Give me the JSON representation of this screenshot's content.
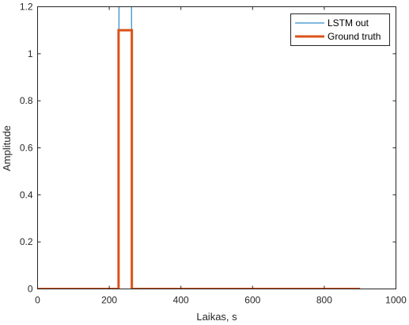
{
  "chart_data": {
    "type": "line",
    "title": "",
    "xlabel": "Laikas, s",
    "ylabel": "Amplitude",
    "xlim": [
      0,
      1000
    ],
    "ylim": [
      0,
      1.2
    ],
    "x_ticks": [
      0,
      200,
      400,
      600,
      800,
      1000
    ],
    "y_ticks": [
      0,
      0.2,
      0.4,
      0.6,
      0.8,
      1,
      1.2
    ],
    "x_tick_labels": [
      "0",
      "200",
      "400",
      "600",
      "800",
      "1000"
    ],
    "y_tick_labels": [
      "0",
      "0.2",
      "0.4",
      "0.6",
      "0.8",
      "1",
      "1.2"
    ],
    "grid": false,
    "legend_position": "top-right",
    "series": [
      {
        "name": "LSTM out",
        "color": "#0072BD",
        "x": [
          0,
          226,
          227,
          262,
          263,
          900
        ],
        "y": [
          0,
          0,
          1.2,
          1.2,
          0,
          0
        ]
      },
      {
        "name": "Ground truth",
        "color": "#D95319",
        "x": [
          0,
          226,
          226,
          263,
          263,
          900
        ],
        "y": [
          0,
          0,
          1.1,
          1.1,
          0,
          0
        ]
      }
    ]
  }
}
